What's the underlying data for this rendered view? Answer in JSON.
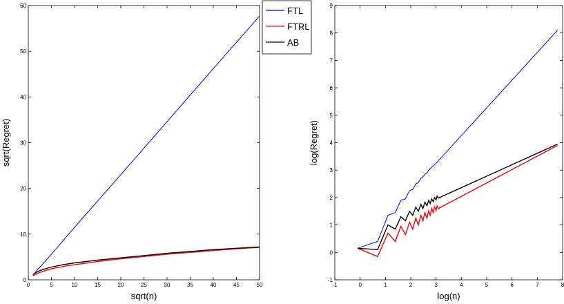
{
  "chart_data": [
    {
      "type": "line",
      "xlabel": "sqrt(n)",
      "ylabel": "sqrt(Regret)",
      "xlim": [
        0,
        50
      ],
      "ylim": [
        0,
        60
      ],
      "xticks": [
        0,
        5,
        10,
        15,
        20,
        25,
        30,
        35,
        40,
        45,
        50
      ],
      "yticks": [
        0,
        10,
        20,
        30,
        40,
        50,
        60
      ],
      "grid": false,
      "legend": "top-right",
      "series": [
        {
          "name": "FTL",
          "color": "#0000ff",
          "x": [
            1,
            2,
            5,
            10,
            20,
            30,
            40,
            50
          ],
          "y": [
            1.0,
            2.2,
            5.6,
            11.5,
            23.0,
            34.6,
            46.2,
            57.7
          ]
        },
        {
          "name": "FTRL",
          "color": "#ff0000",
          "x": [
            1,
            2,
            3,
            5,
            8,
            10,
            15,
            20,
            25,
            30,
            35,
            40,
            45,
            50
          ],
          "y": [
            0.9,
            1.4,
            1.8,
            2.4,
            3.0,
            3.3,
            4.0,
            4.6,
            5.1,
            5.6,
            6.0,
            6.4,
            6.8,
            7.1
          ]
        },
        {
          "name": "AB",
          "color": "#000000",
          "x": [
            1,
            2,
            3,
            5,
            8,
            10,
            15,
            20,
            25,
            30,
            35,
            40,
            45,
            50
          ],
          "y": [
            1.1,
            1.8,
            2.2,
            2.8,
            3.4,
            3.7,
            4.3,
            4.8,
            5.3,
            5.8,
            6.2,
            6.6,
            6.9,
            7.2
          ]
        }
      ]
    },
    {
      "type": "line",
      "xlabel": "log(n)",
      "ylabel": "log(Regret)",
      "xlim": [
        -1,
        8
      ],
      "ylim": [
        -1,
        9
      ],
      "xticks": [
        -1,
        0,
        1,
        2,
        3,
        4,
        5,
        6,
        7,
        8
      ],
      "yticks": [
        -1,
        0,
        1,
        2,
        3,
        4,
        5,
        6,
        7,
        8,
        9
      ],
      "grid": false,
      "series": [
        {
          "name": "FTL",
          "color": "#0000ff",
          "x": [
            -0.1,
            0.69,
            1.1,
            1.39,
            1.61,
            1.79,
            1.95,
            2.08,
            2.2,
            2.3,
            2.4,
            2.48,
            2.56,
            2.64,
            2.71,
            2.77,
            2.83,
            2.89,
            2.94,
            3.0,
            7.8
          ],
          "y": [
            0.15,
            0.4,
            1.35,
            1.45,
            1.9,
            1.95,
            2.25,
            2.3,
            2.5,
            2.55,
            2.7,
            2.75,
            2.85,
            2.9,
            3.0,
            3.05,
            3.1,
            3.15,
            3.2,
            3.25,
            8.1
          ]
        },
        {
          "name": "FTRL",
          "color": "#ff0000",
          "x": [
            -0.1,
            0.69,
            1.1,
            1.39,
            1.61,
            1.79,
            1.95,
            2.08,
            2.2,
            2.3,
            2.4,
            2.48,
            2.56,
            2.64,
            2.71,
            2.77,
            2.83,
            2.89,
            2.94,
            3.0,
            3.04,
            3.09,
            7.8
          ],
          "y": [
            0.15,
            -0.15,
            0.7,
            0.4,
            0.95,
            0.65,
            1.1,
            0.85,
            1.25,
            1.0,
            1.35,
            1.15,
            1.45,
            1.25,
            1.52,
            1.35,
            1.6,
            1.45,
            1.66,
            1.52,
            1.7,
            1.6,
            3.9
          ]
        },
        {
          "name": "AB",
          "color": "#000000",
          "x": [
            -0.1,
            0.69,
            1.1,
            1.39,
            1.61,
            1.79,
            1.95,
            2.08,
            2.2,
            2.3,
            2.4,
            2.48,
            2.56,
            2.64,
            2.71,
            2.77,
            2.83,
            2.89,
            2.94,
            3.0,
            3.04,
            3.09,
            7.8
          ],
          "y": [
            0.15,
            0.1,
            1.0,
            0.85,
            1.3,
            1.15,
            1.5,
            1.35,
            1.65,
            1.5,
            1.75,
            1.6,
            1.83,
            1.7,
            1.9,
            1.78,
            1.95,
            1.85,
            2.0,
            1.92,
            2.05,
            1.98,
            3.95
          ]
        }
      ]
    }
  ]
}
